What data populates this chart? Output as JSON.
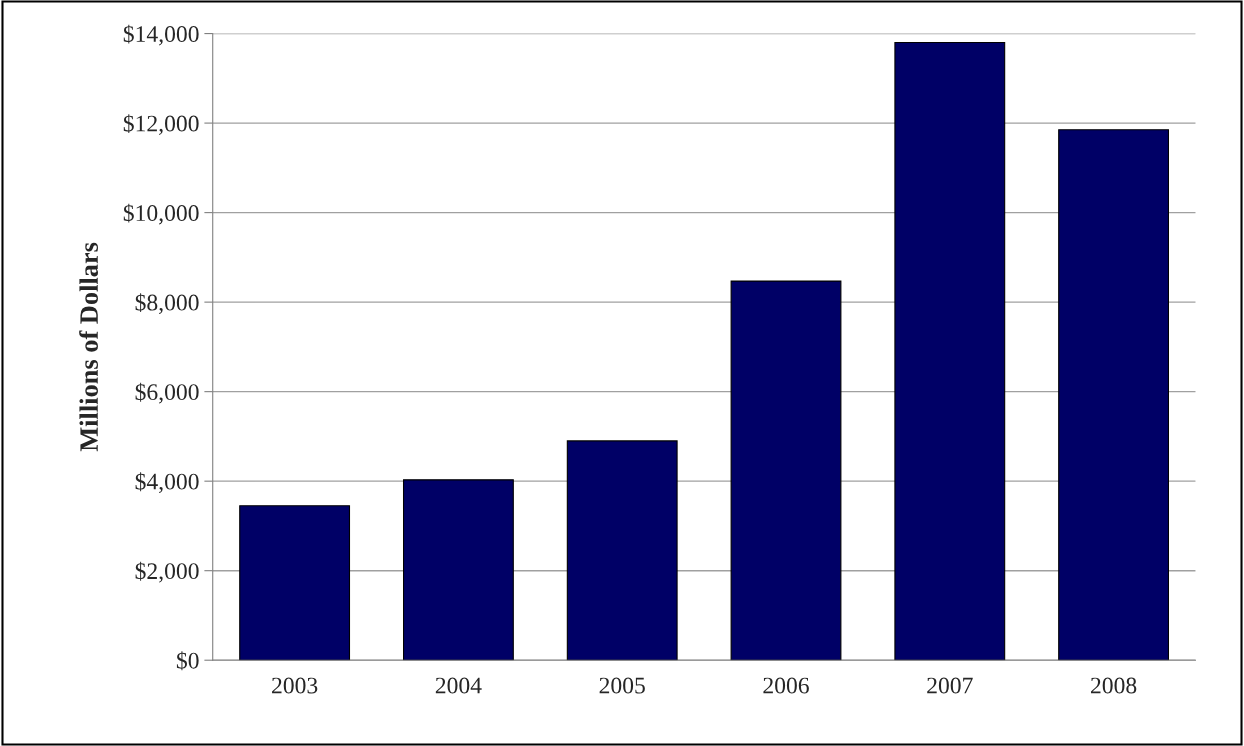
{
  "chart_data": {
    "type": "bar",
    "ylabel": "Millions of Dollars",
    "categories": [
      "2003",
      "2004",
      "2005",
      "2006",
      "2007",
      "2008"
    ],
    "values": [
      3450,
      4030,
      4900,
      8470,
      13800,
      11850
    ],
    "color": "#000066",
    "ylim": [
      0,
      14000
    ],
    "yticks": [
      {
        "value": 0,
        "label": "$0"
      },
      {
        "value": 2000,
        "label": "$2,000"
      },
      {
        "value": 4000,
        "label": "$4,000"
      },
      {
        "value": 6000,
        "label": "$6,000"
      },
      {
        "value": 8000,
        "label": "$8,000"
      },
      {
        "value": 10000,
        "label": "$10,000"
      },
      {
        "value": 12000,
        "label": "$12,000"
      },
      {
        "value": 14000,
        "label": "$14,000"
      }
    ],
    "grid": "y",
    "legend": false
  }
}
